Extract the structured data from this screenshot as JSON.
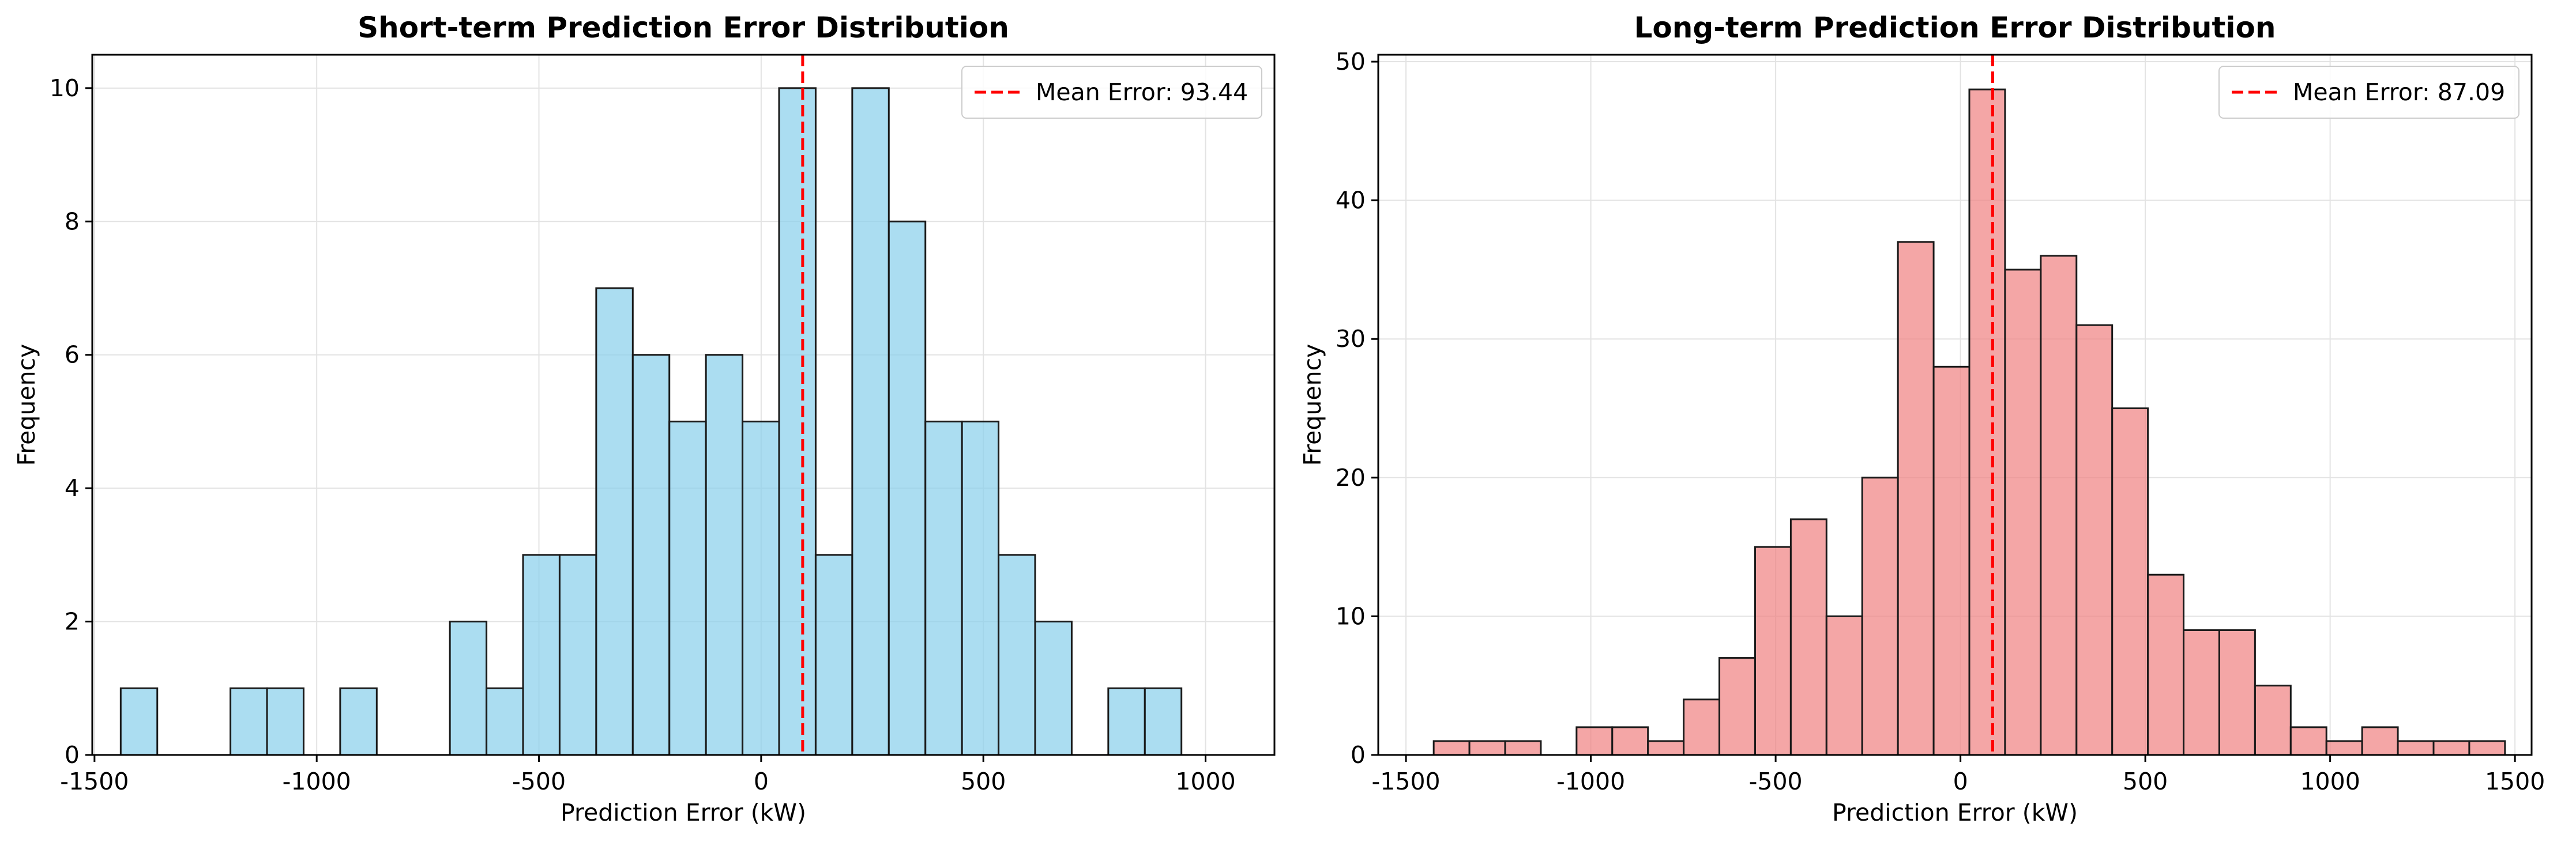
{
  "chart_data": [
    {
      "type": "bar",
      "title": "Short-term Prediction Error Distribution",
      "xlabel": "Prediction Error (kW)",
      "ylabel": "Frequency",
      "xlim": [
        -1505,
        1155
      ],
      "ylim": [
        0,
        10.5
      ],
      "xticks": [
        -1500,
        -1000,
        -500,
        0,
        500,
        1000
      ],
      "yticks": [
        0,
        2,
        4,
        6,
        8,
        10
      ],
      "xtick_labels": [
        "-1500",
        "-1000",
        "-500",
        "0",
        "500",
        "1000"
      ],
      "ytick_labels": [
        "0",
        "2",
        "4",
        "6",
        "8",
        "10"
      ],
      "grid": true,
      "legend_position": "top-right",
      "bar_color": "#87CEEB",
      "bin_start": -1441,
      "bin_width": 82.3,
      "values": [
        1,
        0,
        0,
        1,
        1,
        0,
        1,
        0,
        0,
        2,
        1,
        3,
        3,
        7,
        6,
        5,
        6,
        5,
        10,
        3,
        10,
        8,
        5,
        5,
        3,
        2,
        0,
        1,
        1
      ],
      "mean_line": {
        "value": 93.44,
        "color": "#ff0000",
        "label": "Mean Error: 93.44"
      }
    },
    {
      "type": "bar",
      "title": "Long-term Prediction Error Distribution",
      "xlabel": "Prediction Error (kW)",
      "ylabel": "Frequency",
      "xlim": [
        -1575,
        1545
      ],
      "ylim": [
        0,
        50.5
      ],
      "xticks": [
        -1500,
        -1000,
        -500,
        0,
        500,
        1000,
        1500
      ],
      "yticks": [
        0,
        10,
        20,
        30,
        40,
        50
      ],
      "xtick_labels": [
        "-1500",
        "-1000",
        "-500",
        "0",
        "500",
        "1000",
        "1500"
      ],
      "ytick_labels": [
        "0",
        "10",
        "20",
        "30",
        "40",
        "50"
      ],
      "grid": true,
      "legend_position": "top-right",
      "bar_color": "#F08080",
      "bin_start": -1425,
      "bin_width": 96.6,
      "values": [
        1,
        1,
        1,
        0,
        2,
        2,
        1,
        4,
        7,
        15,
        17,
        10,
        20,
        37,
        28,
        48,
        35,
        36,
        31,
        25,
        13,
        9,
        9,
        5,
        2,
        1,
        2,
        1,
        1,
        1
      ],
      "mean_line": {
        "value": 87.09,
        "color": "#ff0000",
        "label": "Mean Error: 87.09"
      }
    }
  ]
}
